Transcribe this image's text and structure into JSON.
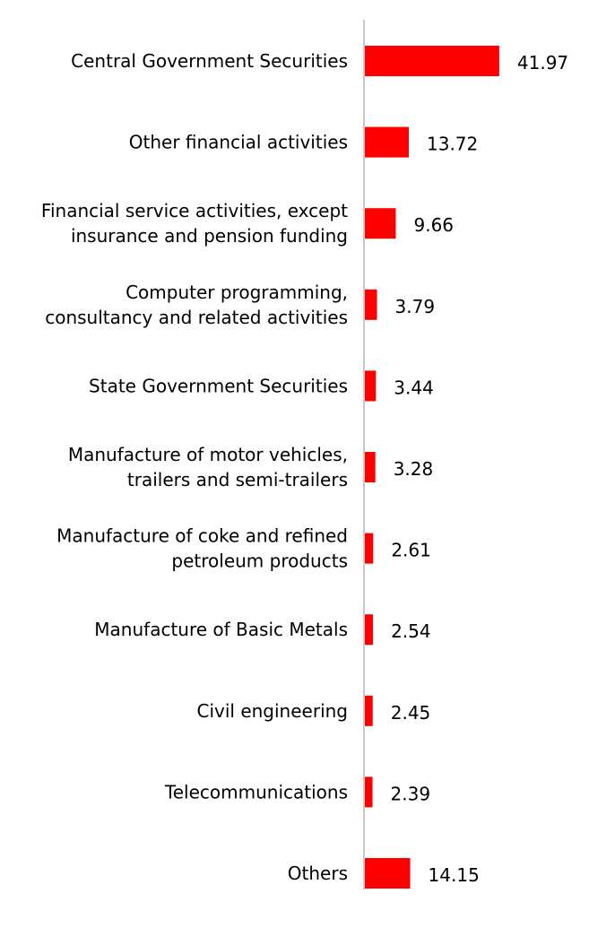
{
  "chart_data": {
    "type": "bar",
    "orientation": "horizontal",
    "title": "",
    "xlabel": "",
    "ylabel": "",
    "grid": false,
    "legend": "none",
    "bar_color": "#ff0000",
    "axis_color": "#c8c8c8",
    "label_color": "#000000",
    "xlim": [
      0,
      45
    ],
    "categories": [
      [
        "Central Government Securities"
      ],
      [
        "Other financial activities"
      ],
      [
        "Financial service activities, except",
        "insurance and pension funding"
      ],
      [
        "Computer programming,",
        "consultancy and related activities"
      ],
      [
        "State Government Securities"
      ],
      [
        "Manufacture of motor vehicles,",
        "trailers and semi-trailers"
      ],
      [
        "Manufacture of coke and refined",
        "petroleum products"
      ],
      [
        "Manufacture of Basic Metals"
      ],
      [
        "Civil engineering"
      ],
      [
        "Telecommunications"
      ],
      [
        "Others"
      ]
    ],
    "values": [
      41.97,
      13.72,
      9.66,
      3.79,
      3.44,
      3.28,
      2.61,
      2.54,
      2.45,
      2.39,
      14.15
    ],
    "value_labels": [
      "41.97",
      "13.72",
      "9.66",
      "3.79",
      "3.44",
      "3.28",
      "2.61",
      "2.54",
      "2.45",
      "2.39",
      "14.15"
    ]
  }
}
